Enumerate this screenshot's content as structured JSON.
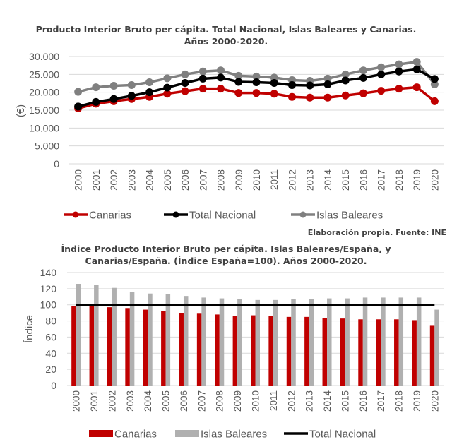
{
  "chart_data": [
    {
      "type": "line",
      "title": "Producto Interior Bruto per cápita. Total Nacional, Islas Baleares y Canarias.",
      "subtitle": "Años 2000-2020.",
      "xlabel": "",
      "ylabel": "(€)",
      "ylim": [
        0,
        30000
      ],
      "yticks": [
        0,
        5000,
        10000,
        15000,
        20000,
        25000,
        30000
      ],
      "ytick_labels": [
        "0",
        "5.000",
        "10.000",
        "15.000",
        "20.000",
        "25.000",
        "30.000"
      ],
      "grid": true,
      "legend_position": "bottom",
      "categories": [
        "2000",
        "2001",
        "2002",
        "2003",
        "2004",
        "2005",
        "2006",
        "2007",
        "2008",
        "2009",
        "2010",
        "2011",
        "2012",
        "2013",
        "2014",
        "2015",
        "2016",
        "2017",
        "2018",
        "2019",
        "2020"
      ],
      "series": [
        {
          "name": "Canarias",
          "color": "#c00000",
          "values": [
            15500,
            16800,
            17500,
            18100,
            18700,
            19600,
            20300,
            21000,
            21000,
            19800,
            19800,
            19600,
            18700,
            18500,
            18500,
            19100,
            19700,
            20400,
            21000,
            21400,
            17500
          ]
        },
        {
          "name": "Total Nacional",
          "color": "#000000",
          "values": [
            16000,
            17300,
            18100,
            19000,
            20000,
            21300,
            22600,
            23800,
            24100,
            22900,
            22800,
            22600,
            22000,
            21900,
            22200,
            23300,
            24000,
            25000,
            25800,
            26400,
            23700
          ]
        },
        {
          "name": "Islas Baleares",
          "color": "#808080",
          "values": [
            20100,
            21400,
            21800,
            22000,
            22800,
            23900,
            25000,
            25800,
            26100,
            24600,
            24400,
            24100,
            23400,
            23200,
            23800,
            25000,
            26100,
            27000,
            27800,
            28500,
            22200
          ]
        }
      ],
      "annotation": "Elaboración propia. Fuente: INE"
    },
    {
      "type": "bar",
      "title": "Índice Producto Interior Bruto per cápita. Islas Baleares/España, y",
      "subtitle": "Canarias/España. (Índice España=100). Años 2000-2020.",
      "xlabel": "",
      "ylabel": "Índice",
      "ylim": [
        0,
        140
      ],
      "yticks": [
        0,
        20,
        40,
        60,
        80,
        100,
        120,
        140
      ],
      "ytick_labels": [
        "0",
        "20",
        "40",
        "60",
        "80",
        "100",
        "120",
        "140"
      ],
      "grid": true,
      "legend_position": "bottom",
      "categories": [
        "2000",
        "2001",
        "2002",
        "2003",
        "2004",
        "2005",
        "2006",
        "2007",
        "2008",
        "2009",
        "2010",
        "2011",
        "2012",
        "2013",
        "2014",
        "2015",
        "2016",
        "2017",
        "2018",
        "2019",
        "2020"
      ],
      "series": [
        {
          "name": "Canarias",
          "kind": "bar",
          "color": "#c00000",
          "values": [
            98,
            98,
            97,
            96,
            94,
            92,
            90,
            89,
            88,
            86,
            87,
            86,
            85,
            85,
            84,
            83,
            82,
            82,
            82,
            81,
            74
          ]
        },
        {
          "name": "Islas Baleares",
          "kind": "bar",
          "color": "#b0b0b0",
          "values": [
            126,
            125,
            121,
            116,
            114,
            113,
            111,
            109,
            108,
            107,
            106,
            106,
            107,
            107,
            108,
            108,
            109,
            109,
            109,
            109,
            94
          ]
        },
        {
          "name": "Total Nacional",
          "kind": "line",
          "color": "#000000",
          "values": [
            100,
            100,
            100,
            100,
            100,
            100,
            100,
            100,
            100,
            100,
            100,
            100,
            100,
            100,
            100,
            100,
            100,
            100,
            100,
            100,
            100
          ]
        }
      ]
    }
  ]
}
